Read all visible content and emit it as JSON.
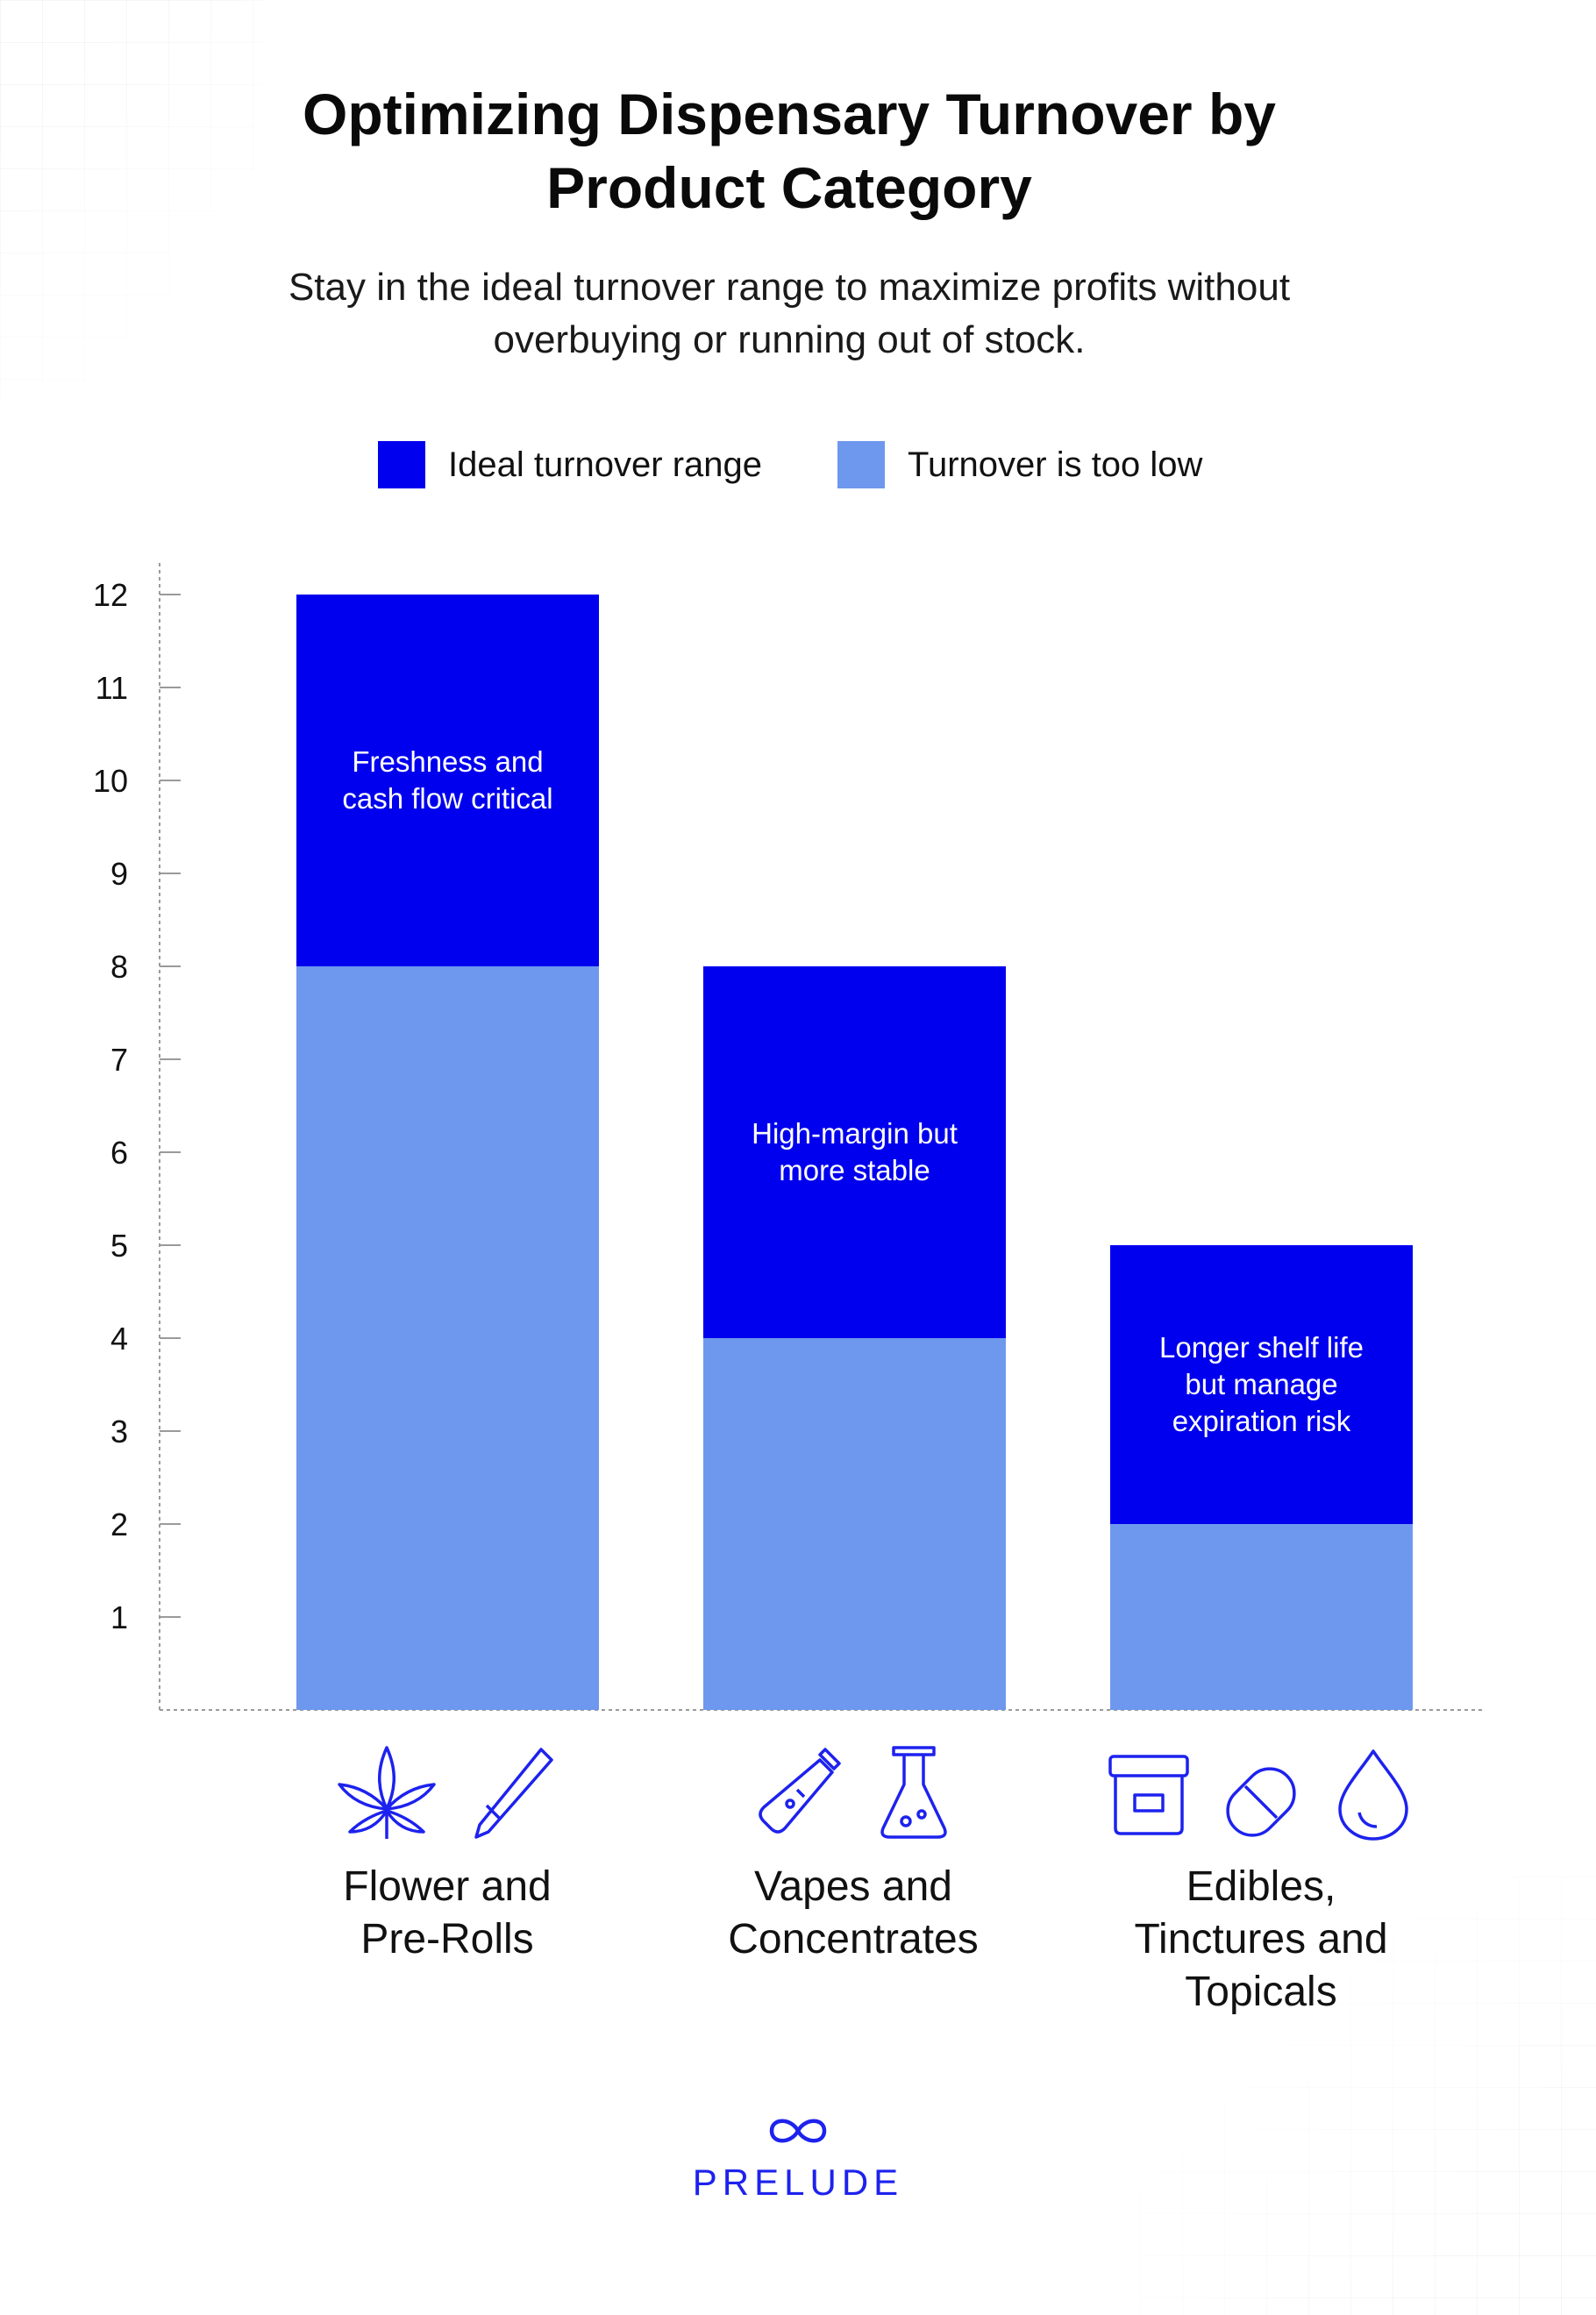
{
  "title_line1": "Optimizing Dispensary Turnover by",
  "title_line2": "Product Category",
  "subtitle_line1": "Stay in the ideal turnover range to maximize profits without",
  "subtitle_line2": "overbuying or running out of stock.",
  "colors": {
    "ideal": "#0000ee",
    "too_low": "#6e98ee",
    "brand": "#1d22ee"
  },
  "legend": [
    {
      "label": "Ideal turnover range",
      "color": "#0000ee"
    },
    {
      "label": "Turnover is too low",
      "color": "#6e98ee"
    }
  ],
  "chart_data": {
    "type": "bar",
    "stacked": true,
    "title": "",
    "xlabel": "",
    "ylabel": "",
    "ylim": [
      0,
      12
    ],
    "yticks": [
      1,
      2,
      3,
      4,
      5,
      6,
      7,
      8,
      9,
      10,
      11,
      12
    ],
    "categories": [
      "Flower and Pre-Rolls",
      "Vapes and Concentrates",
      "Edibles, Tinctures and Topicals"
    ],
    "series": [
      {
        "name": "Turnover is too low",
        "values": [
          8,
          4,
          2
        ]
      },
      {
        "name": "Ideal turnover range",
        "range_top": [
          12,
          8,
          5
        ]
      }
    ],
    "annotations": [
      [
        "Freshness and",
        "cash flow critical"
      ],
      [
        "High-margin but",
        "more stable"
      ],
      [
        "Longer shelf life",
        "but manage",
        "expiration risk"
      ]
    ],
    "grid": false
  },
  "categories_display": [
    {
      "line1": "Flower and",
      "line2": "Pre-Rolls",
      "line3": "",
      "icons": [
        "cannabis-leaf-icon",
        "pre-roll-icon"
      ]
    },
    {
      "line1": "Vapes and",
      "line2": "Concentrates",
      "line3": "",
      "icons": [
        "vape-pen-icon",
        "flask-icon"
      ]
    },
    {
      "line1": "Edibles,",
      "line2": "Tinctures and",
      "line3": "Topicals",
      "icons": [
        "jar-icon",
        "capsule-icon",
        "droplet-icon"
      ]
    }
  ],
  "brand": {
    "name": "PRELUDE",
    "logo": "infinity-logo-icon"
  }
}
